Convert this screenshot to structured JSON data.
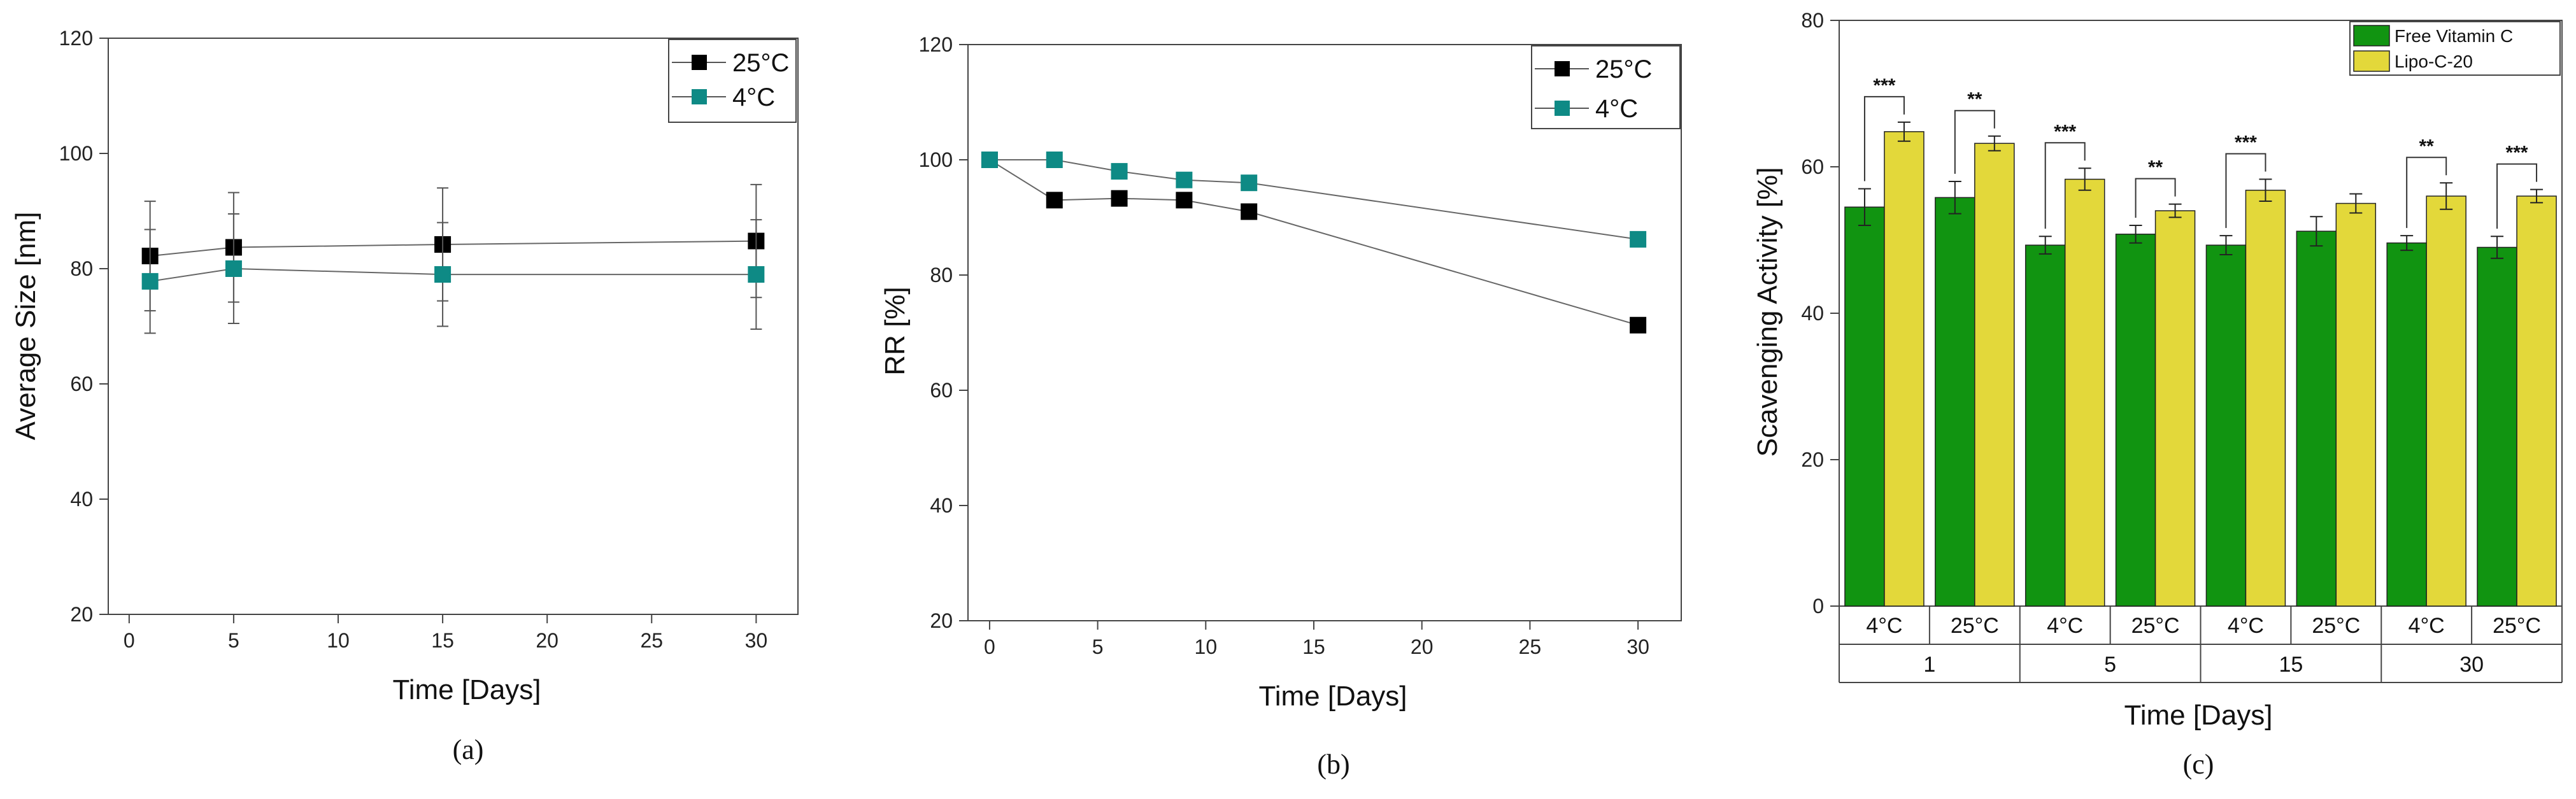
{
  "chart_data": [
    {
      "type": "line",
      "caption": "(a)",
      "xlabel": "Time [Days]",
      "ylabel": "Average Size [nm]",
      "xlim": [
        -1,
        32
      ],
      "ylim": [
        20,
        120
      ],
      "xticks": [
        0,
        5,
        10,
        15,
        20,
        25,
        30
      ],
      "yticks": [
        20,
        40,
        60,
        80,
        100,
        120
      ],
      "series": [
        {
          "name": "25°C",
          "color": "#000000",
          "x": [
            1,
            5,
            15,
            30
          ],
          "y": [
            82.2,
            83.7,
            84.2,
            84.8
          ],
          "err": [
            9.5,
            9.5,
            9.8,
            9.8
          ]
        },
        {
          "name": "4°C",
          "color": "#0e8a85",
          "x": [
            1,
            5,
            15,
            30
          ],
          "y": [
            77.8,
            80.0,
            79.0,
            79.0
          ],
          "err": [
            9.0,
            9.5,
            9.0,
            9.5
          ]
        }
      ]
    },
    {
      "type": "line",
      "caption": "(b)",
      "xlabel": "Time [Days]",
      "ylabel": "RR [%]",
      "xlim": [
        -1,
        32
      ],
      "ylim": [
        20,
        120
      ],
      "xticks": [
        0,
        5,
        10,
        15,
        20,
        25,
        30
      ],
      "yticks": [
        20,
        40,
        60,
        80,
        100,
        120
      ],
      "series": [
        {
          "name": "25°C",
          "color": "#000000",
          "x": [
            0,
            3,
            6,
            9,
            12,
            30
          ],
          "y": [
            100,
            93,
            93.3,
            93,
            91,
            71.3
          ]
        },
        {
          "name": "4°C",
          "color": "#0e8a85",
          "x": [
            0,
            3,
            6,
            9,
            12,
            30
          ],
          "y": [
            100,
            100,
            98,
            96.5,
            96,
            86.2
          ]
        }
      ]
    },
    {
      "type": "bar",
      "caption": "(c)",
      "xlabel": "Time [Days]",
      "ylabel": "Scavenging Activity [%]",
      "ylim": [
        0,
        80
      ],
      "yticks": [
        0,
        20,
        40,
        60,
        80
      ],
      "groups": [
        "1",
        "5",
        "15",
        "30"
      ],
      "subgroups": [
        "4°C",
        "25°C"
      ],
      "series": [
        {
          "name": "Free Vitamin C",
          "color": "#119411",
          "values": [
            54.5,
            55.8,
            49.3,
            50.8,
            49.3,
            51.2,
            49.6,
            49.0
          ],
          "err": [
            2.5,
            2.2,
            1.2,
            1.2,
            1.3,
            2.0,
            1.0,
            1.5
          ]
        },
        {
          "name": "Lipo-C-20",
          "color": "#e3d83a",
          "values": [
            64.8,
            63.2,
            58.3,
            54.0,
            56.8,
            55.0,
            56.0,
            56.0
          ],
          "err": [
            1.3,
            1.0,
            1.5,
            0.9,
            1.5,
            1.3,
            1.8,
            0.9
          ]
        }
      ],
      "significance": [
        "***",
        "**",
        "***",
        "**",
        "***",
        "",
        "**",
        "***"
      ]
    }
  ]
}
